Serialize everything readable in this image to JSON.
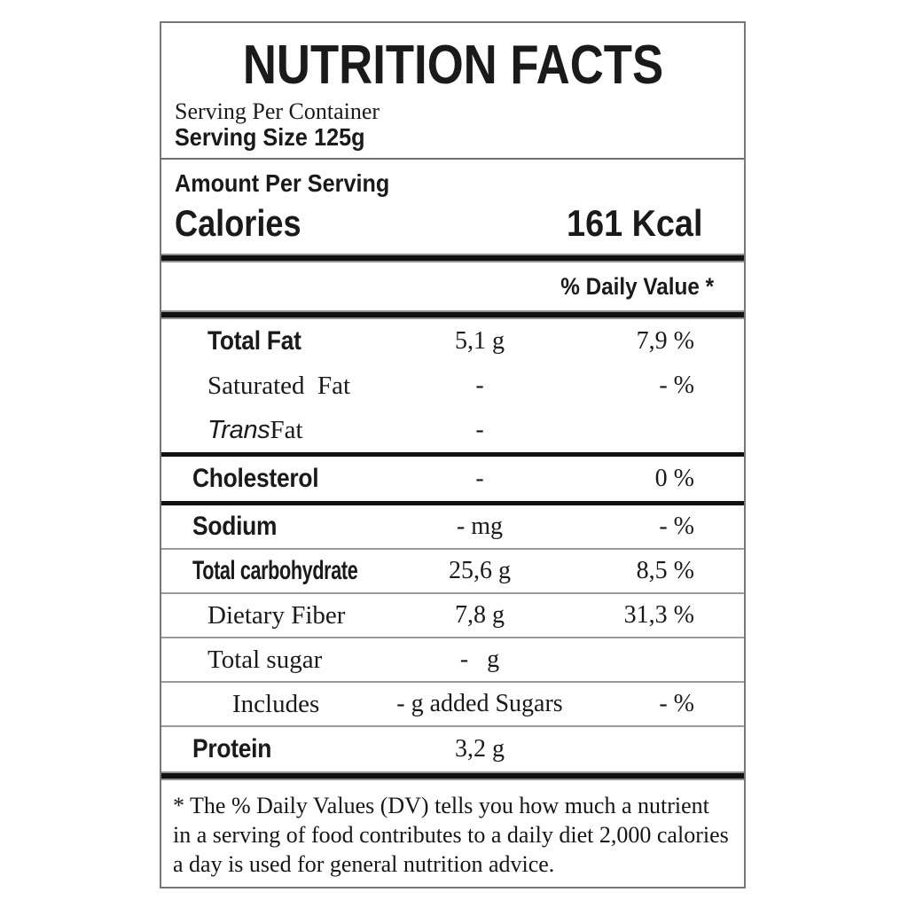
{
  "colors": {
    "text": "#1a1a1a",
    "heavy_bar": "#111111",
    "thin_line": "#9a9a9a",
    "outer_border": "#767676",
    "background": "#ffffff"
  },
  "label": {
    "title": "NUTRITION FACTS",
    "serving_per_container": "Serving Per Container",
    "serving_size_label": "Serving Size",
    "serving_size_value": "125g",
    "amount_per_serving": "Amount Per Serving",
    "calories_label": "Calories",
    "calories_value": "161 Kcal",
    "daily_value_header": "% Daily Value *",
    "footnote": "* The % Daily Values (DV) tells you how much a nutrient in a serving of food contributes to a daily diet 2,000 calories a day is used for general nutrition advice."
  },
  "rows": [
    {
      "label": "Total Fat",
      "amount": "5,1 g",
      "percent": "7,9 %",
      "label_style": "bold",
      "indent": 1,
      "divider_after": "none"
    },
    {
      "label": "Saturated  Fat",
      "amount": "-",
      "percent": "- %",
      "label_style": "serif",
      "indent": 1,
      "divider_after": "none"
    },
    {
      "label_parts": [
        {
          "text": "Trans",
          "style": "italic"
        },
        {
          "text": "Fat",
          "style": "serif"
        }
      ],
      "amount": "-",
      "percent": "",
      "label_style": "serif",
      "indent": 1,
      "divider_after": "medium"
    },
    {
      "label": "Cholesterol",
      "amount": "-",
      "percent": "0 %",
      "label_style": "bold",
      "indent": 0,
      "divider_after": "medium"
    },
    {
      "label": "Sodium",
      "amount": "- mg",
      "percent": "- %",
      "label_style": "bold",
      "indent": 0,
      "divider_after": "thin"
    },
    {
      "label": "Total carbohydrate",
      "amount": "25,6 g",
      "percent": "8,5 %",
      "label_style": "bold-condensed",
      "indent": 0,
      "divider_after": "thin"
    },
    {
      "label": "Dietary Fiber",
      "amount": "7,8 g",
      "percent": "31,3 %",
      "label_style": "serif",
      "indent": 1,
      "divider_after": "thin"
    },
    {
      "label": "Total sugar",
      "amount": "-   g",
      "percent": "",
      "label_style": "serif",
      "indent": 1,
      "divider_after": "thin"
    },
    {
      "label": "Includes",
      "amount": "- g added Sugars",
      "percent": "- %",
      "label_style": "serif",
      "indent": 2,
      "divider_after": "thin"
    },
    {
      "label": "Protein",
      "amount": "3,2 g",
      "percent": "",
      "label_style": "bold",
      "indent": 0,
      "divider_after": "heavy"
    }
  ]
}
